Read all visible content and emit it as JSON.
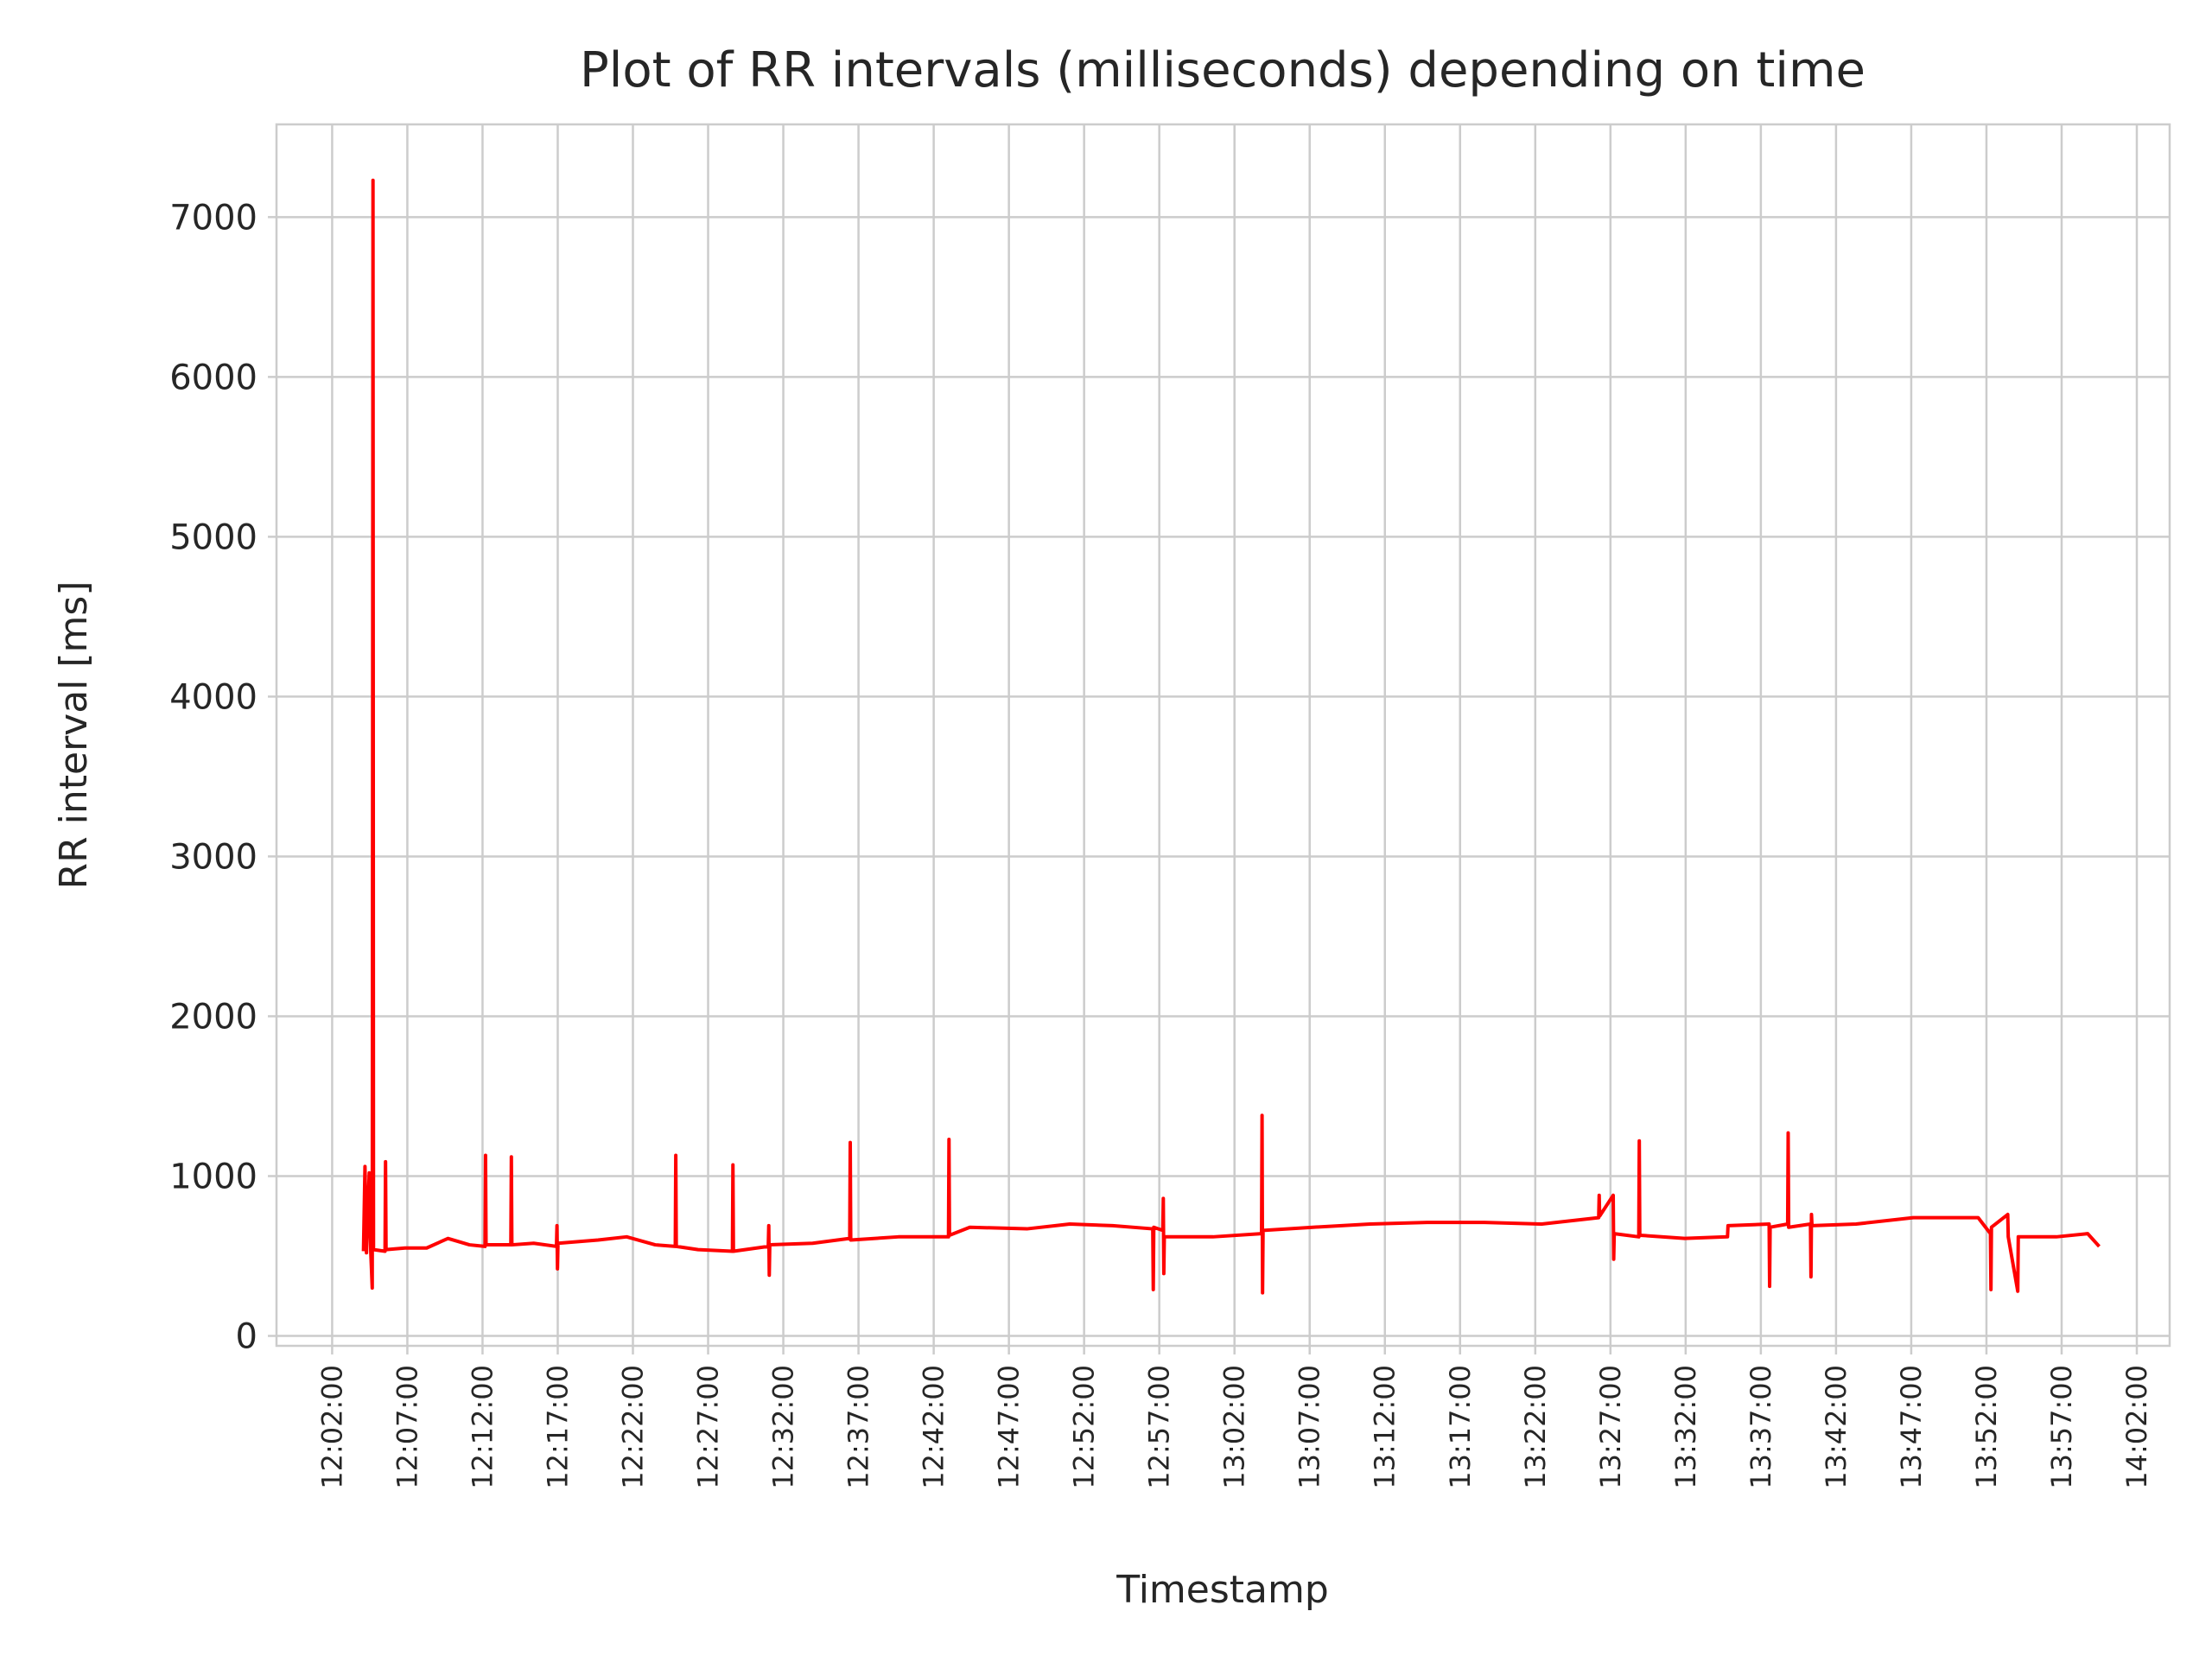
{
  "chart_data": {
    "type": "line",
    "title": "Plot of RR intervals (milliseconds) depending on time",
    "xlabel": "Timestamp",
    "ylabel": "RR interval [ms]",
    "color": "#ff0000",
    "grid": true,
    "x": [
      "12:04:05",
      "12:04:11",
      "12:04:17",
      "12:04:28",
      "12:04:34",
      "12:04:40",
      "12:04:43",
      "12:04:45",
      "12:05:31",
      "12:05:33",
      "12:05:35",
      "12:06:51",
      "12:08:17",
      "12:09:42",
      "12:11:08",
      "12:12:10",
      "12:12:12",
      "12:12:14",
      "12:13:53",
      "12:13:55",
      "12:13:57",
      "12:15:24",
      "12:16:55",
      "12:16:57",
      "12:16:59",
      "12:17:01",
      "12:19:41",
      "12:21:35",
      "12:23:29",
      "12:24:49",
      "12:24:51",
      "12:24:53",
      "12:26:20",
      "12:28:37",
      "12:28:39",
      "12:28:41",
      "12:31:00",
      "12:31:02",
      "12:31:04",
      "12:31:06",
      "12:33:57",
      "12:36:25",
      "12:36:27",
      "12:36:29",
      "12:39:39",
      "12:42:59",
      "12:43:01",
      "12:43:03",
      "12:44:24",
      "12:48:12",
      "12:51:03",
      "12:53:54",
      "12:56:34",
      "12:56:36",
      "12:56:38",
      "12:57:14",
      "12:57:16",
      "12:57:18",
      "12:57:20",
      "13:00:34",
      "13:03:48",
      "13:03:50",
      "13:03:52",
      "13:03:54",
      "13:07:13",
      "13:11:01",
      "13:14:49",
      "13:18:37",
      "13:22:26",
      "13:26:13",
      "13:26:15",
      "13:26:17",
      "13:27:11",
      "13:27:13",
      "13:27:15",
      "13:28:53",
      "13:28:55",
      "13:28:57",
      "13:31:56",
      "13:34:47",
      "13:34:49",
      "13:37:33",
      "13:37:35",
      "13:37:37",
      "13:38:47",
      "13:38:49",
      "13:38:51",
      "13:40:18",
      "13:40:20",
      "13:40:22",
      "13:40:24",
      "13:43:20",
      "13:47:08",
      "13:51:27",
      "13:52:16",
      "13:52:18",
      "13:52:20",
      "13:53:25",
      "13:53:27",
      "13:54:05",
      "13:54:07",
      "13:56:39",
      "13:58:44",
      "13:59:30"
    ],
    "values": [
      530,
      1060,
      520,
      1020,
      530,
      300,
      7230,
      540,
      530,
      1090,
      540,
      550,
      550,
      610,
      570,
      560,
      1130,
      570,
      570,
      1120,
      570,
      580,
      560,
      690,
      420,
      580,
      600,
      620,
      570,
      560,
      1130,
      560,
      540,
      530,
      1070,
      530,
      560,
      690,
      380,
      570,
      580,
      610,
      1210,
      600,
      620,
      620,
      1230,
      630,
      680,
      670,
      700,
      690,
      670,
      290,
      680,
      660,
      860,
      390,
      620,
      620,
      640,
      1380,
      270,
      660,
      680,
      700,
      710,
      710,
      700,
      740,
      880,
      750,
      880,
      480,
      640,
      620,
      1220,
      630,
      610,
      620,
      690,
      700,
      310,
      680,
      700,
      1270,
      680,
      700,
      370,
      760,
      690,
      700,
      740,
      740,
      640,
      290,
      680,
      760,
      620,
      280,
      620,
      620,
      640,
      560
    ],
    "xlim": [
      "11:58:18",
      "14:04:11"
    ],
    "xticks": [
      "12:02:00",
      "12:07:00",
      "12:12:00",
      "12:17:00",
      "12:22:00",
      "12:27:00",
      "12:32:00",
      "12:37:00",
      "12:42:00",
      "12:47:00",
      "12:52:00",
      "12:57:00",
      "13:02:00",
      "13:07:00",
      "13:12:00",
      "13:17:00",
      "13:22:00",
      "13:27:00",
      "13:32:00",
      "13:37:00",
      "13:42:00",
      "13:47:00",
      "13:52:00",
      "13:57:00",
      "14:02:00"
    ],
    "ylim": [
      -62,
      7580
    ],
    "yticks": [
      0,
      1000,
      2000,
      3000,
      4000,
      5000,
      6000,
      7000
    ]
  }
}
